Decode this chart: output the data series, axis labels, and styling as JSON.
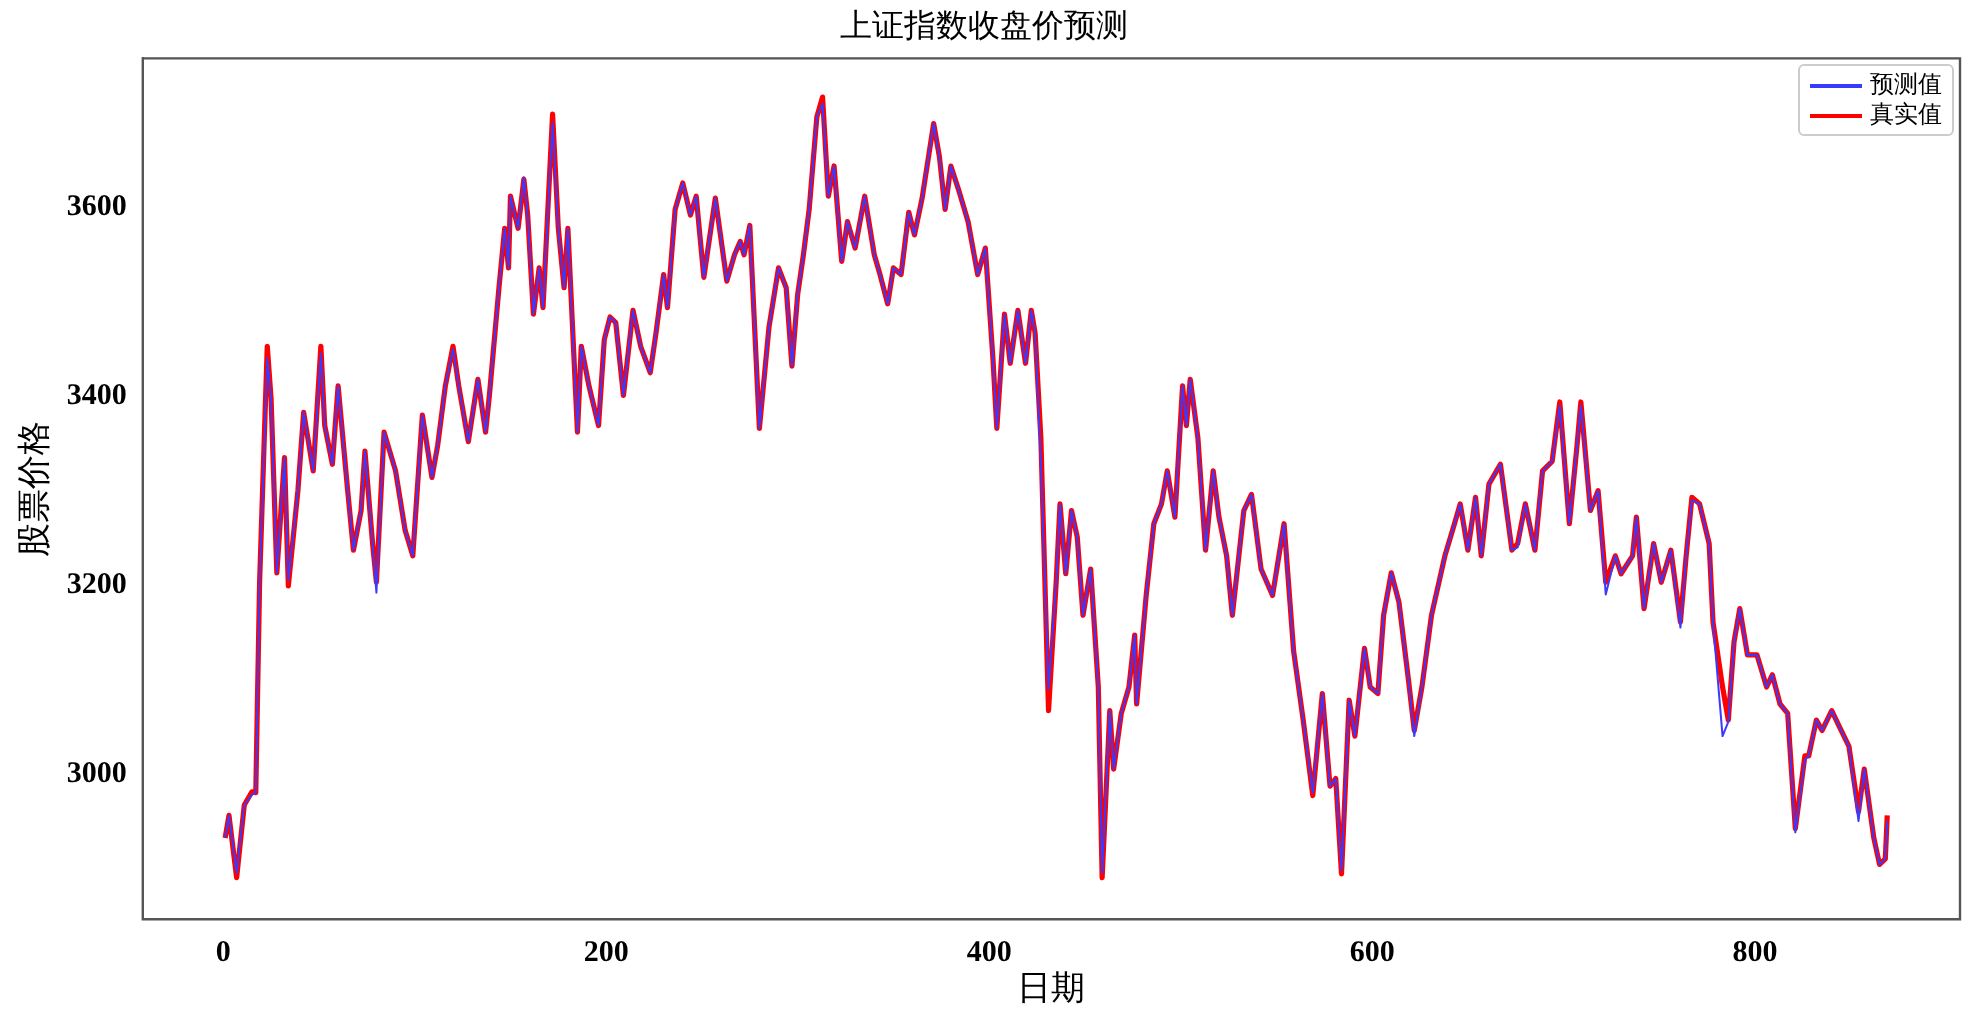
{
  "chart_data": {
    "type": "line",
    "title": "上证指数收盘价预测",
    "xlabel": "日期",
    "ylabel": "股票价格",
    "legend": "top right",
    "marker": "none",
    "line_style": "solid",
    "grid": false,
    "xlim": [
      -42,
      907
    ],
    "xticks": [
      0,
      200,
      400,
      600,
      800
    ],
    "ylim": [
      2846,
      3758
    ],
    "yticks": [
      3000,
      3200,
      3400,
      3600
    ],
    "x": [
      1,
      3,
      7,
      11,
      15,
      17,
      19,
      23,
      25,
      28,
      32,
      34,
      39,
      42,
      47,
      51,
      53,
      57,
      60,
      65,
      68,
      72,
      74,
      78,
      80,
      84,
      90,
      95,
      99,
      102,
      104,
      109,
      112,
      116,
      120,
      123,
      128,
      133,
      137,
      139,
      144,
      147,
      149,
      150,
      154,
      157,
      159,
      162,
      165,
      167,
      172,
      175,
      178,
      180,
      185,
      187,
      191,
      196,
      199,
      202,
      205,
      209,
      214,
      218,
      223,
      226,
      230,
      232,
      236,
      240,
      244,
      247,
      251,
      257,
      263,
      267,
      270,
      272,
      275,
      280,
      285,
      290,
      294,
      297,
      300,
      303,
      306,
      310,
      313,
      316,
      319,
      323,
      326,
      330,
      335,
      340,
      343,
      347,
      350,
      354,
      358,
      361,
      365,
      371,
      374,
      377,
      380,
      384,
      389,
      394,
      398,
      402,
      404,
      408,
      411,
      415,
      419,
      422,
      424,
      427,
      431,
      435,
      437,
      440,
      443,
      446,
      449,
      453,
      457,
      459,
      463,
      465,
      469,
      473,
      476,
      477,
      482,
      486,
      490,
      493,
      497,
      501,
      503,
      505,
      509,
      513,
      517,
      520,
      524,
      527,
      533,
      537,
      542,
      548,
      554,
      559,
      564,
      569,
      574,
      578,
      581,
      584,
      588,
      591,
      596,
      599,
      603,
      606,
      610,
      614,
      619,
      622,
      626,
      631,
      638,
      643,
      646,
      650,
      654,
      657,
      661,
      665,
      667,
      673,
      676,
      680,
      685,
      689,
      694,
      698,
      703,
      707,
      709,
      714,
      718,
      722,
      727,
      730,
      736,
      738,
      742,
      747,
      751,
      756,
      761,
      764,
      767,
      771,
      776,
      778,
      783,
      786,
      789,
      792,
      796,
      801,
      806,
      809,
      813,
      817,
      821,
      826,
      828,
      832,
      835,
      840,
      844,
      849,
      854,
      857,
      862,
      865,
      868,
      869
    ],
    "series": [
      {
        "name": "预测值",
        "color": "#3a3aff",
        "values": [
          2932,
          2956,
          2895,
          2967,
          2978,
          2980,
          3203,
          3440,
          3397,
          3213,
          3335,
          3205,
          3300,
          3383,
          3321,
          3445,
          3369,
          3328,
          3411,
          3300,
          3237,
          3279,
          3342,
          3244,
          3192,
          3362,
          3321,
          3258,
          3231,
          3321,
          3380,
          3314,
          3348,
          3411,
          3450,
          3411,
          3352,
          3418,
          3362,
          3401,
          3515,
          3578,
          3536,
          3612,
          3578,
          3632,
          3592,
          3487,
          3536,
          3494,
          3690,
          3578,
          3515,
          3578,
          3362,
          3453,
          3411,
          3369,
          3460,
          3484,
          3478,
          3401,
          3491,
          3453,
          3425,
          3467,
          3529,
          3494,
          3598,
          3626,
          3592,
          3612,
          3526,
          3610,
          3522,
          3550,
          3564,
          3550,
          3581,
          3366,
          3473,
          3536,
          3515,
          3432,
          3508,
          3550,
          3598,
          3696,
          3710,
          3612,
          3644,
          3543,
          3585,
          3557,
          3612,
          3550,
          3529,
          3498,
          3536,
          3529,
          3595,
          3571,
          3610,
          3689,
          3654,
          3598,
          3644,
          3619,
          3585,
          3529,
          3557,
          3439,
          3366,
          3487,
          3435,
          3491,
          3435,
          3491,
          3467,
          3330,
          3090,
          3203,
          3286,
          3212,
          3279,
          3251,
          3168,
          3217,
          3092,
          2895,
          3067,
          3005,
          3064,
          3092,
          3147,
          3074,
          3189,
          3265,
          3286,
          3321,
          3272,
          3411,
          3369,
          3418,
          3356,
          3237,
          3321,
          3272,
          3231,
          3168,
          3279,
          3296,
          3217,
          3189,
          3265,
          3130,
          3057,
          2980,
          3085,
          2987,
          2995,
          2898,
          3078,
          3040,
          3133,
          3092,
          3085,
          3168,
          3213,
          3182,
          3099,
          3040,
          3092,
          3168,
          3231,
          3265,
          3286,
          3237,
          3293,
          3231,
          3307,
          3321,
          3328,
          3237,
          3240,
          3286,
          3237,
          3321,
          3331,
          3390,
          3265,
          3348,
          3390,
          3279,
          3300,
          3190,
          3231,
          3212,
          3231,
          3272,
          3175,
          3244,
          3203,
          3237,
          3155,
          3231,
          3290,
          3286,
          3244,
          3161,
          3040,
          3055,
          3140,
          3175,
          3126,
          3126,
          3092,
          3105,
          3074,
          3064,
          2938,
          3015,
          3019,
          3057,
          3046,
          3067,
          3050,
          3029,
          2950,
          3005,
          2932,
          2904,
          2910,
          2950
        ]
      },
      {
        "name": "真实值",
        "color": "#ff0000",
        "values": [
          2932,
          2956,
          2890,
          2967,
          2981,
          2980,
          3203,
          3453,
          3397,
          3213,
          3335,
          3199,
          3300,
          3383,
          3321,
          3453,
          3369,
          3328,
          3411,
          3300,
          3237,
          3279,
          3342,
          3244,
          3203,
          3362,
          3321,
          3258,
          3231,
          3321,
          3380,
          3314,
          3348,
          3411,
          3453,
          3411,
          3352,
          3418,
          3362,
          3401,
          3515,
          3578,
          3536,
          3612,
          3578,
          3630,
          3592,
          3487,
          3536,
          3494,
          3699,
          3578,
          3515,
          3578,
          3362,
          3453,
          3411,
          3369,
          3460,
          3484,
          3478,
          3401,
          3491,
          3453,
          3425,
          3467,
          3529,
          3494,
          3598,
          3626,
          3592,
          3612,
          3526,
          3610,
          3522,
          3550,
          3564,
          3550,
          3581,
          3366,
          3473,
          3536,
          3515,
          3432,
          3508,
          3550,
          3598,
          3696,
          3717,
          3612,
          3644,
          3543,
          3585,
          3557,
          3612,
          3550,
          3529,
          3498,
          3536,
          3529,
          3595,
          3571,
          3610,
          3689,
          3654,
          3598,
          3644,
          3619,
          3585,
          3529,
          3557,
          3439,
          3366,
          3487,
          3435,
          3491,
          3435,
          3491,
          3467,
          3356,
          3067,
          3203,
          3286,
          3212,
          3279,
          3251,
          3168,
          3217,
          3092,
          2890,
          3067,
          3005,
          3064,
          3092,
          3147,
          3074,
          3189,
          3265,
          3286,
          3321,
          3272,
          3411,
          3369,
          3418,
          3356,
          3237,
          3321,
          3272,
          3231,
          3168,
          3279,
          3296,
          3217,
          3189,
          3265,
          3130,
          3057,
          2977,
          3085,
          2987,
          2995,
          2894,
          3078,
          3040,
          3133,
          3092,
          3085,
          3168,
          3213,
          3182,
          3099,
          3046,
          3092,
          3168,
          3231,
          3265,
          3286,
          3237,
          3293,
          3231,
          3307,
          3321,
          3328,
          3237,
          3244,
          3286,
          3237,
          3321,
          3331,
          3394,
          3265,
          3348,
          3394,
          3279,
          3300,
          3203,
          3231,
          3212,
          3231,
          3272,
          3175,
          3244,
          3203,
          3237,
          3161,
          3231,
          3293,
          3286,
          3244,
          3161,
          3092,
          3057,
          3140,
          3175,
          3126,
          3126,
          3092,
          3105,
          3074,
          3064,
          2942,
          3019,
          3019,
          3057,
          3046,
          3067,
          3050,
          3029,
          2960,
          3005,
          2932,
          2904,
          2910,
          2956
        ]
      }
    ]
  }
}
